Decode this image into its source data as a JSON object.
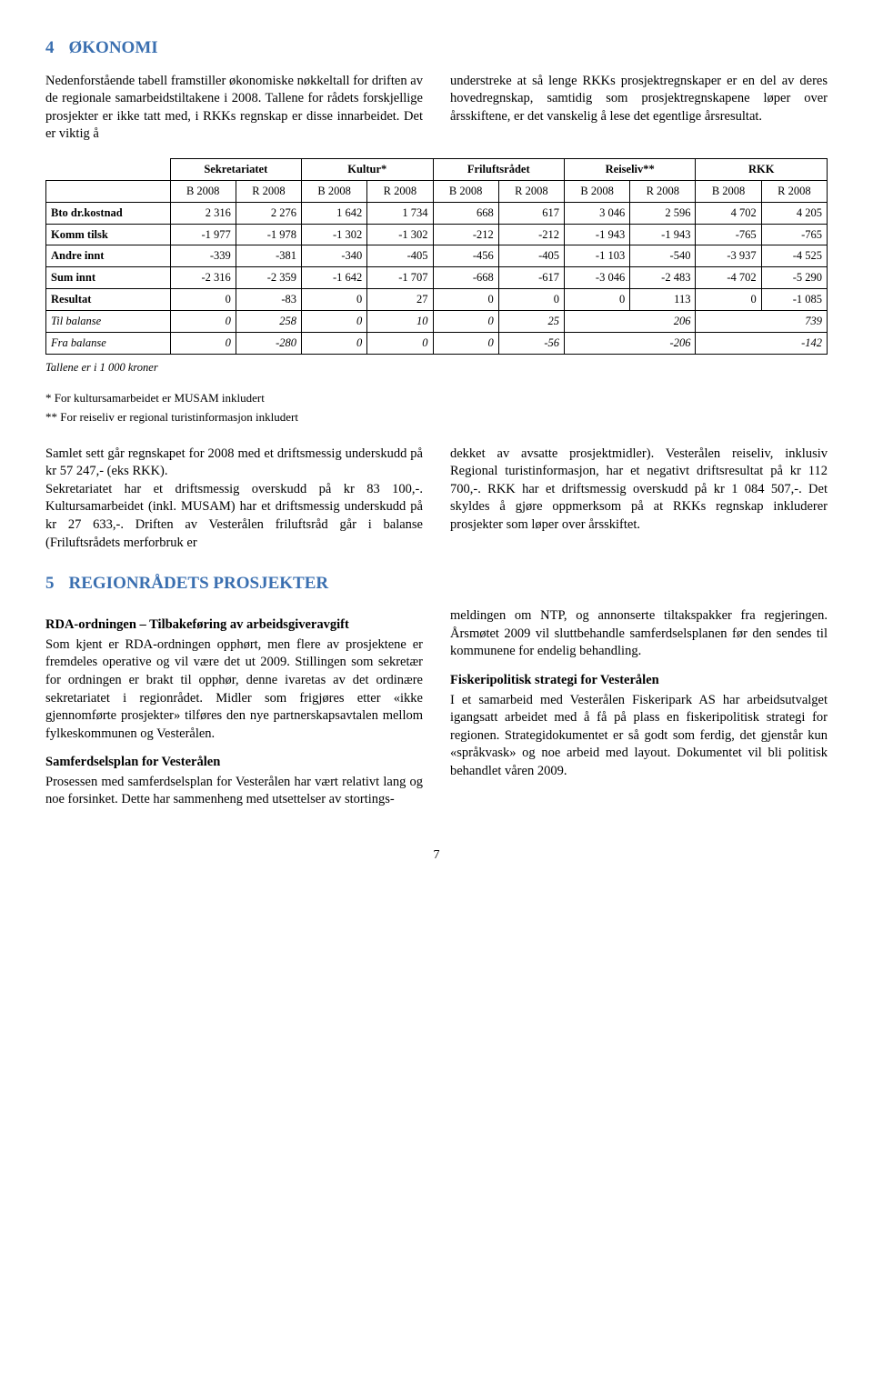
{
  "section4": {
    "num": "4",
    "title": "ØKONOMI",
    "left_para": "Nedenforstående tabell framstiller økonomiske nøkkeltall for driften av de regionale samarbeidstiltakene i 2008. Tallene for rådets forskjellige prosjekter er ikke tatt med, i RKKs regnskap er disse innarbeidet. Det er viktig å",
    "right_para": "understreke at så lenge RKKs prosjektregnskaper er en del av deres hovedregnskap, samtidig som prosjektregnskapene løper over årsskiftene, er det vanskelig å lese det egentlige årsresultat."
  },
  "table": {
    "group_headers": [
      "Sekretariatet",
      "Kultur*",
      "Friluftsrådet",
      "Reiseliv**",
      "RKK"
    ],
    "col_headers": [
      "B 2008",
      "R 2008",
      "B 2008",
      "R 2008",
      "B 2008",
      "R 2008",
      "B 2008",
      "R 2008",
      "B 2008",
      "R 2008"
    ],
    "rows": [
      {
        "label": "Bto dr.kostnad",
        "vals": [
          "2 316",
          "2 276",
          "1 642",
          "1 734",
          "668",
          "617",
          "3 046",
          "2 596",
          "4 702",
          "4 205"
        ]
      },
      {
        "label": "Komm tilsk",
        "vals": [
          "-1 977",
          "-1 978",
          "-1 302",
          "-1 302",
          "-212",
          "-212",
          "-1 943",
          "-1 943",
          "-765",
          "-765"
        ]
      },
      {
        "label": "Andre innt",
        "vals": [
          "-339",
          "-381",
          "-340",
          "-405",
          "-456",
          "-405",
          "-1 103",
          "-540",
          "-3 937",
          "-4 525"
        ]
      },
      {
        "label": "Sum innt",
        "vals": [
          "-2 316",
          "-2 359",
          "-1 642",
          "-1 707",
          "-668",
          "-617",
          "-3 046",
          "-2 483",
          "-4 702",
          "-5 290"
        ]
      },
      {
        "label": "Resultat",
        "vals": [
          "0",
          "-83",
          "0",
          "27",
          "0",
          "0",
          "0",
          "113",
          "0",
          "-1 085"
        ]
      }
    ],
    "italic_rows": [
      {
        "label": "Til balanse",
        "vals": [
          "0",
          "258",
          "0",
          "10",
          "0",
          "25",
          "206",
          "739"
        ]
      },
      {
        "label": "Fra balanse",
        "vals": [
          "0",
          "-280",
          "0",
          "0",
          "0",
          "-56",
          "-206",
          "-142"
        ]
      }
    ],
    "note": "Tallene er i 1 000 kroner"
  },
  "footnotes": {
    "f1": "*  For kultursamarbeidet er MUSAM inkludert",
    "f2": "** For reiseliv er regional turistinformasjon inkludert"
  },
  "summary": {
    "left": "Samlet sett går regnskapet for 2008 med et driftsmessig underskudd på kr 57 247,- (eks RKK).\nSekretariatet har et driftsmessig overskudd på kr 83 100,-. Kultursamarbeidet (inkl. MUSAM) har et driftsmessig underskudd på kr 27 633,-. Driften av Vesterålen friluftsråd går i balanse (Friluftsrådets merforbruk er",
    "right": "dekket av avsatte prosjektmidler). Vesterålen reiseliv, inklusiv Regional turistinformasjon, har et negativt driftsresultat på kr 112 700,-. RKK har et driftsmessig overskudd på kr 1 084 507,-. Det skyldes å gjøre oppmerksom på at RKKs regnskap inkluderer prosjekter som løper over årsskiftet."
  },
  "section5": {
    "num": "5",
    "title": "REGIONRÅDETS PROSJEKTER",
    "left_blocks": [
      {
        "head": "RDA-ordningen – Tilbakeføring av arbeidsgiveravgift",
        "body": "Som kjent er RDA-ordningen opphørt, men flere av prosjektene er fremdeles operative og vil være det ut 2009. Stillingen som sekretær for ordningen er brakt til opphør, denne ivaretas av det ordinære sekretariatet i regionrådet. Midler som frigjøres etter «ikke gjennomførte prosjekter» tilføres den nye partnerskapsavtalen mellom fylkeskommunen og Vesterålen."
      },
      {
        "head": "Samferdselsplan for Vesterålen",
        "body": "Prosessen med samferdselsplan for Vesterålen har vært relativt lang og noe forsinket. Dette har sammenheng med utsettelser av stortings-"
      }
    ],
    "right_blocks": [
      {
        "head": "",
        "body": "meldingen om NTP, og annonserte tiltakspakker fra regjeringen. Årsmøtet 2009 vil sluttbehandle samferdselsplanen før den sendes til kommunene for endelig behandling."
      },
      {
        "head": "Fiskeripolitisk strategi for Vesterålen",
        "body": "I et samarbeid med Vesterålen Fiskeripark AS har arbeidsutvalget igangsatt arbeidet med å få på plass en fiskeripolitisk strategi for regionen. Strategidokumentet er så godt som ferdig, det gjenstår kun «språkvask» og noe arbeid med layout. Dokumentet vil bli politisk behandlet våren 2009."
      }
    ]
  },
  "page_number": "7"
}
